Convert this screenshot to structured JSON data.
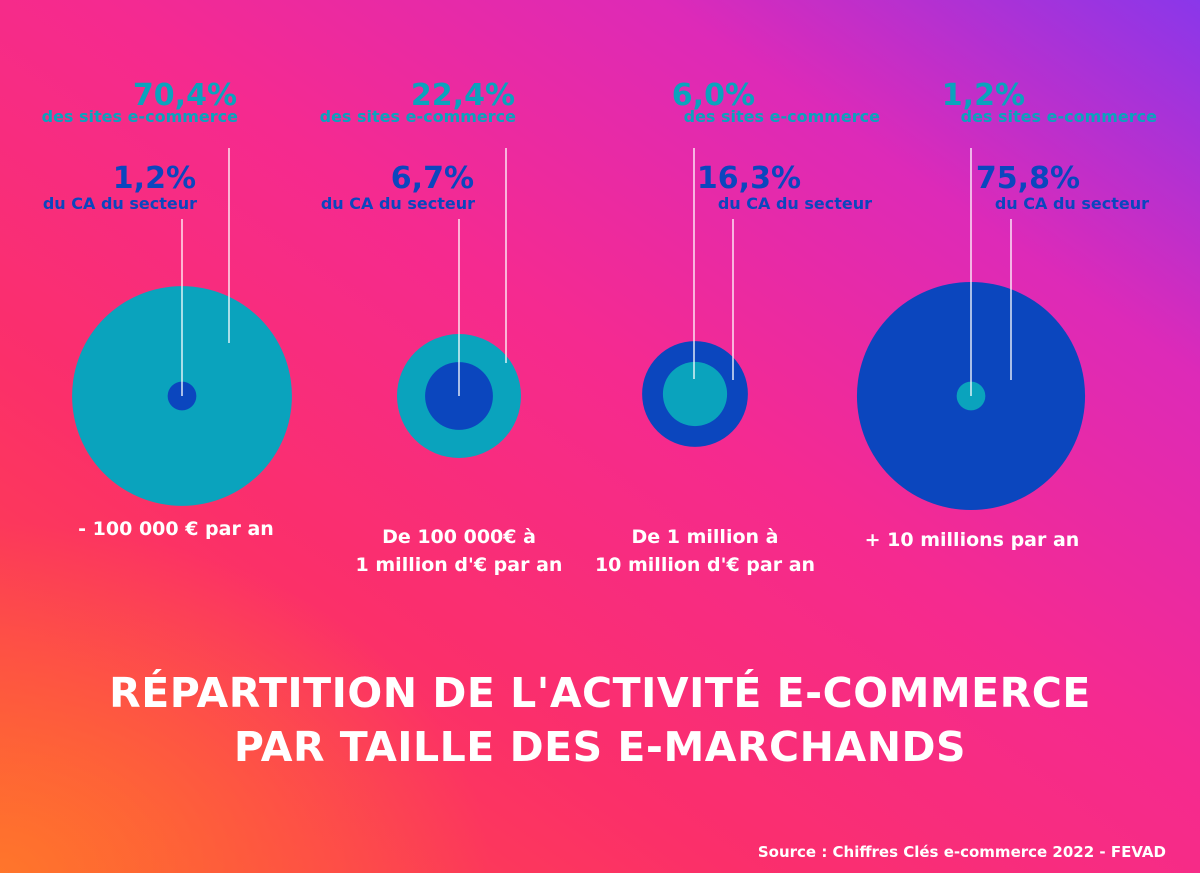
{
  "title_line1": "RÉPARTITION DE L'ACTIVITÉ E-COMMERCE",
  "title_line2": "PAR TAILLE DES E-MARCHANDS",
  "source": "Source : Chiffres Clés e-commerce 2022 - FEVAD",
  "colors": {
    "sites": "#0aa3bd",
    "ca": "#0b46be",
    "label": "#ffffff"
  },
  "chart_data": {
    "type": "bubble",
    "title": "RÉPARTITION DE L'ACTIVITÉ E-COMMERCE PAR TAILLE DES E-MARCHANDS",
    "series": [
      {
        "name": "des sites e-commerce",
        "unit": "%"
      },
      {
        "name": "du CA du secteur",
        "unit": "%"
      }
    ],
    "categories": [
      {
        "label": [
          "- 100 000 € par an"
        ],
        "sites_pct": 70.4,
        "sites_text": "70,4%",
        "ca_pct": 1.2,
        "ca_text": "1,2%"
      },
      {
        "label": [
          "De 100 000€ à",
          "1 million d'€ par an"
        ],
        "sites_pct": 22.4,
        "sites_text": "22,4%",
        "ca_pct": 6.7,
        "ca_text": "6,7%"
      },
      {
        "label": [
          "De 1 million à",
          "10 million d'€ par an"
        ],
        "sites_pct": 6.0,
        "sites_text": "6,0%",
        "ca_pct": 16.3,
        "ca_text": "16,3%"
      },
      {
        "label": [
          "+ 10 millions par an"
        ],
        "sites_pct": 1.2,
        "sites_text": "1,2%",
        "ca_pct": 75.8,
        "ca_text": "75,8%"
      }
    ]
  }
}
